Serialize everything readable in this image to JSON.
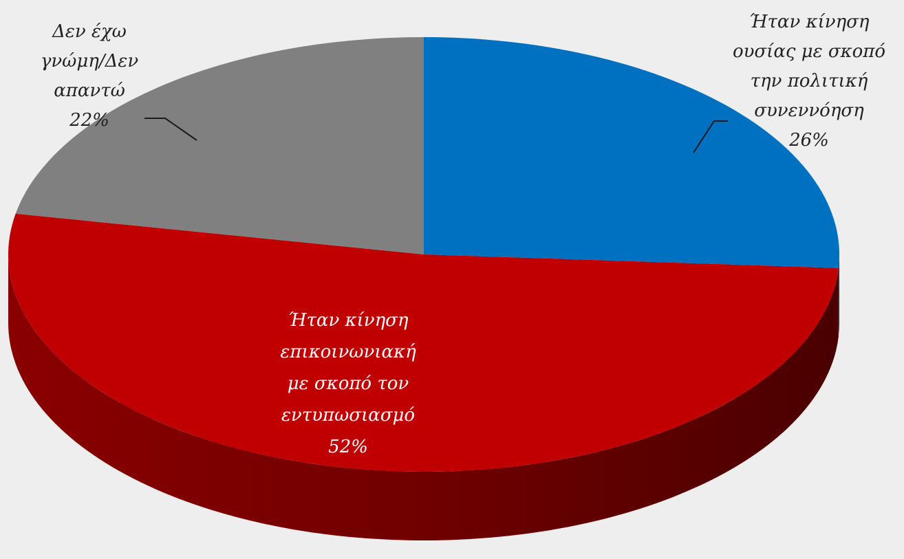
{
  "chart_data": {
    "type": "pie",
    "style": "3d",
    "title": "",
    "slices": [
      {
        "label_lines": [
          "Ήταν κίνηση",
          "ουσίας με σκοπό",
          "την πολιτική",
          "συνεννόηση"
        ],
        "value": 26,
        "value_label": "26%",
        "color": "#0070c0"
      },
      {
        "label_lines": [
          "Ήταν κίνηση",
          "επικοινωνιακή",
          "με σκοπό τον",
          "εντυπωσιασμό"
        ],
        "value": 52,
        "value_label": "52%",
        "color": "#c00000"
      },
      {
        "label_lines": [
          "Δεν έχω",
          "γνώμη/Δεν",
          "απαντώ"
        ],
        "value": 22,
        "value_label": "22%",
        "color": "#808080"
      }
    ],
    "legend": "none",
    "label_colors": {
      "outside": "#222222",
      "inside": "#ffffff"
    },
    "background": "#eeeeee"
  }
}
